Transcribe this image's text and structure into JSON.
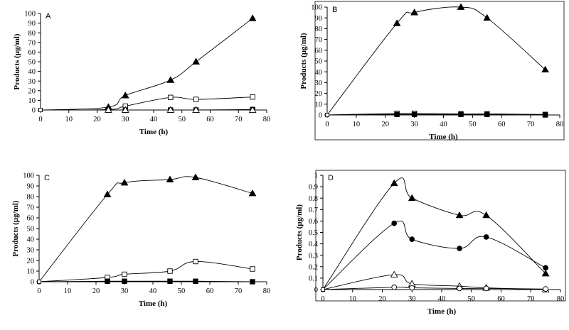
{
  "figure": {
    "caption": ""
  },
  "chart_data": [
    {
      "type": "line",
      "panel_label": "A",
      "title": "",
      "xlabel": "Time (h)",
      "ylabel": "Products (µg/ml)",
      "xlim": [
        0,
        80
      ],
      "ylim": [
        0,
        100
      ],
      "xticks": [
        0,
        10,
        20,
        30,
        40,
        50,
        60,
        70,
        80
      ],
      "yticks": [
        0,
        10,
        20,
        30,
        40,
        50,
        60,
        70,
        80,
        90,
        100
      ],
      "grid": false,
      "frame": false,
      "series": [
        {
          "name": "filled-triangle",
          "marker": "triangle-filled",
          "x": [
            0,
            24,
            30,
            46,
            55,
            75
          ],
          "y": [
            0,
            3,
            15,
            31,
            50,
            95
          ]
        },
        {
          "name": "open-square",
          "marker": "square-open",
          "x": [
            0,
            24,
            30,
            46,
            55,
            75
          ],
          "y": [
            0,
            0.5,
            4,
            13,
            11,
            13.5
          ]
        },
        {
          "name": "filled-square",
          "marker": "square-filled",
          "x": [
            0,
            24,
            30,
            46,
            55,
            75
          ],
          "y": [
            0,
            0,
            0,
            0,
            0,
            0.5
          ]
        },
        {
          "name": "open-triangle",
          "marker": "triangle-open",
          "x": [
            0,
            24,
            30,
            46,
            55,
            75
          ],
          "y": [
            0,
            0,
            0,
            0,
            0,
            0
          ]
        }
      ]
    },
    {
      "type": "line",
      "panel_label": "B",
      "title": "",
      "xlabel": "Time (h)",
      "ylabel": "Products (µg/ml)",
      "xlim": [
        0,
        80
      ],
      "ylim": [
        0,
        100
      ],
      "xticks": [
        0,
        10,
        20,
        30,
        40,
        50,
        60,
        70,
        80
      ],
      "yticks": [
        0,
        10,
        20,
        30,
        40,
        50,
        60,
        70,
        80,
        90,
        100
      ],
      "grid": false,
      "frame": true,
      "series": [
        {
          "name": "filled-triangle",
          "marker": "triangle-filled",
          "x": [
            0,
            24,
            30,
            46,
            55,
            75
          ],
          "y": [
            0,
            85,
            95,
            100,
            90,
            42
          ]
        },
        {
          "name": "open-square",
          "marker": "square-open",
          "x": [
            0,
            24,
            30,
            46,
            55,
            75
          ],
          "y": [
            0,
            1.5,
            1.5,
            1,
            1,
            0.5
          ]
        },
        {
          "name": "filled-square",
          "marker": "square-filled",
          "x": [
            0,
            24,
            30,
            46,
            55,
            75
          ],
          "y": [
            0,
            0.5,
            0.5,
            0.5,
            0.5,
            0
          ]
        }
      ]
    },
    {
      "type": "line",
      "panel_label": "C",
      "title": "",
      "xlabel": "Time (h)",
      "ylabel": "Products (µg/ml)",
      "xlim": [
        0,
        80
      ],
      "ylim": [
        0,
        100
      ],
      "xticks": [
        0,
        10,
        20,
        30,
        40,
        50,
        60,
        70,
        80
      ],
      "yticks": [
        0,
        10,
        20,
        30,
        40,
        50,
        60,
        70,
        80,
        90,
        100
      ],
      "grid": false,
      "frame": false,
      "series": [
        {
          "name": "filled-triangle",
          "marker": "triangle-filled",
          "x": [
            0,
            24,
            30,
            46,
            55,
            75
          ],
          "y": [
            0,
            82,
            93,
            96,
            98,
            83
          ]
        },
        {
          "name": "open-square",
          "marker": "square-open",
          "x": [
            0,
            24,
            30,
            46,
            55,
            75
          ],
          "y": [
            0,
            4,
            7,
            10,
            19,
            12
          ]
        },
        {
          "name": "filled-square",
          "marker": "square-filled",
          "x": [
            0,
            24,
            30,
            46,
            55,
            75
          ],
          "y": [
            0,
            0.5,
            0.5,
            0.5,
            0.5,
            0
          ]
        }
      ]
    },
    {
      "type": "line",
      "panel_label": "D",
      "title": "",
      "xlabel": "Time (h)",
      "ylabel": "Products (µg/ml)",
      "xlim": [
        0,
        80
      ],
      "ylim": [
        0,
        1
      ],
      "xticks": [
        0,
        10,
        20,
        30,
        40,
        50,
        60,
        70,
        80
      ],
      "yticks": [
        0,
        0.1,
        0.2,
        0.3,
        0.4,
        0.5,
        0.6,
        0.7,
        0.8,
        0.9,
        1
      ],
      "ytick_labels": [
        "0",
        "0.1",
        "0.2",
        "0.3",
        "0.4",
        "0.5",
        "0.6",
        "0.7",
        "0.8",
        "0.9",
        "1"
      ],
      "grid": false,
      "frame": true,
      "series": [
        {
          "name": "filled-triangle",
          "marker": "triangle-filled",
          "x": [
            0,
            24,
            30,
            46,
            55,
            75
          ],
          "y": [
            0,
            0.93,
            0.8,
            0.65,
            0.65,
            0.14
          ]
        },
        {
          "name": "filled-circle",
          "marker": "circle-filled",
          "x": [
            0,
            24,
            30,
            46,
            55,
            75
          ],
          "y": [
            0,
            0.58,
            0.44,
            0.36,
            0.46,
            0.19
          ]
        },
        {
          "name": "open-triangle",
          "marker": "triangle-open",
          "x": [
            0,
            24,
            30,
            46,
            55,
            75
          ],
          "y": [
            0,
            0.13,
            0.05,
            0.03,
            0.015,
            0
          ]
        },
        {
          "name": "open-circle",
          "marker": "circle-open",
          "x": [
            0,
            24,
            30,
            46,
            55,
            75
          ],
          "y": [
            0,
            0.02,
            0.015,
            0.01,
            0.01,
            0.005
          ]
        }
      ]
    }
  ]
}
